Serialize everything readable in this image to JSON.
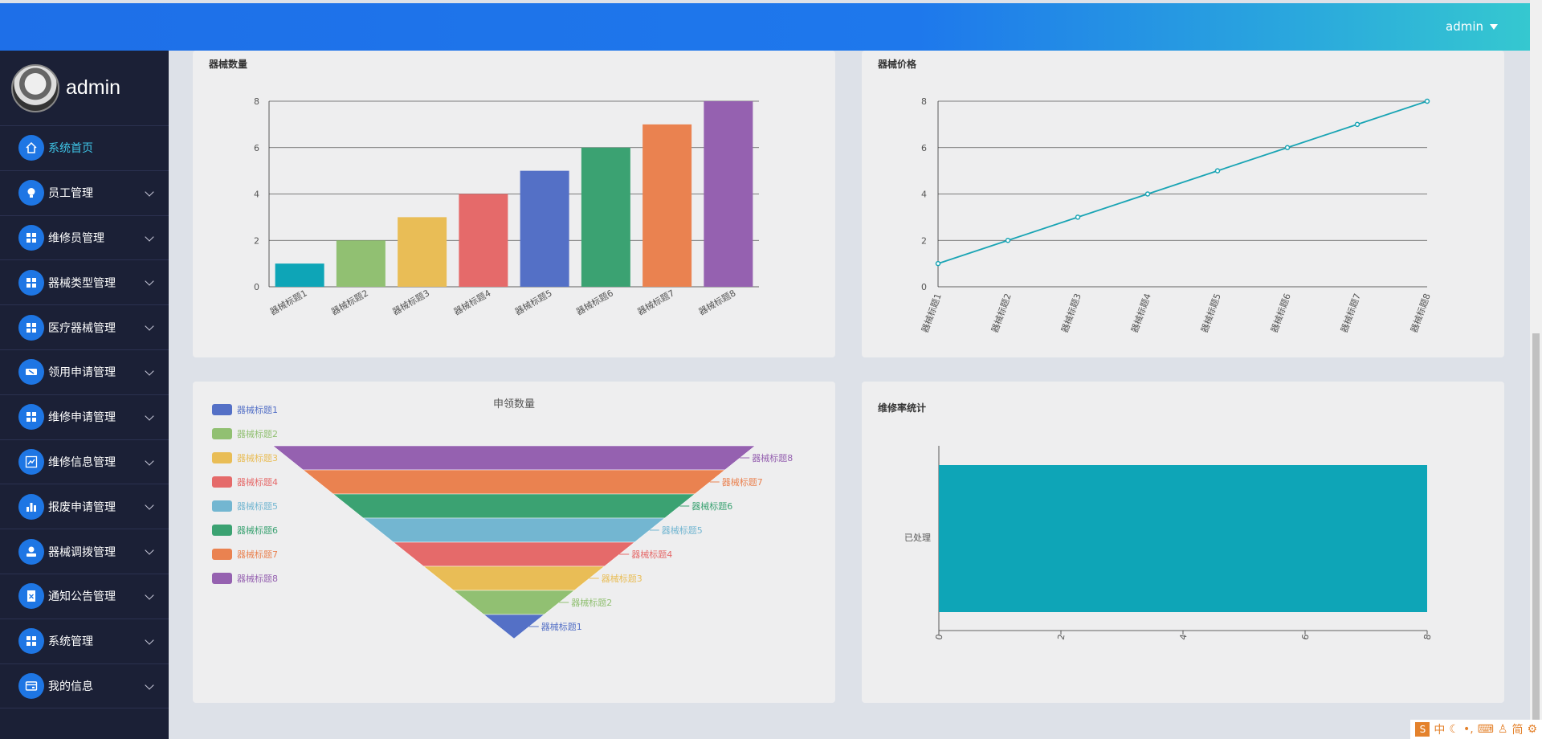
{
  "header": {
    "user_label": "admin"
  },
  "sidebar": {
    "brand_name": "admin",
    "items": [
      {
        "label": "系统首页",
        "icon": "home-icon",
        "active": true
      },
      {
        "label": "员工管理",
        "icon": "bulb-icon"
      },
      {
        "label": "维修员管理",
        "icon": "grid-icon"
      },
      {
        "label": "器械类型管理",
        "icon": "grid-icon"
      },
      {
        "label": "医疗器械管理",
        "icon": "grid-icon"
      },
      {
        "label": "领用申请管理",
        "icon": "ticket-icon"
      },
      {
        "label": "维修申请管理",
        "icon": "grid-icon"
      },
      {
        "label": "维修信息管理",
        "icon": "trend-icon"
      },
      {
        "label": "报废申请管理",
        "icon": "bar-chart-icon"
      },
      {
        "label": "器械调拨管理",
        "icon": "user-icon"
      },
      {
        "label": "通知公告管理",
        "icon": "notice-icon"
      },
      {
        "label": "系统管理",
        "icon": "grid-icon"
      },
      {
        "label": "我的信息",
        "icon": "card-icon"
      }
    ]
  },
  "panels": {
    "quantity_title": "器械数量",
    "price_title": "器械价格",
    "apply_title": "申领数量",
    "repair_title": "维修率统计"
  },
  "tray": {
    "chars": [
      "中",
      "简"
    ]
  },
  "chart_data": [
    {
      "type": "bar",
      "title": "器械数量",
      "categories": [
        "器械标题1",
        "器械标题2",
        "器械标题3",
        "器械标题4",
        "器械标题5",
        "器械标题6",
        "器械标题7",
        "器械标题8"
      ],
      "values": [
        1,
        2,
        3,
        4,
        5,
        6,
        7,
        8
      ],
      "ylim": [
        0,
        8
      ],
      "yticks": [
        "0",
        "2",
        "4",
        "6",
        "8"
      ],
      "colors": [
        "#0ea5b7",
        "#91c072",
        "#e9bd56",
        "#e56a6a",
        "#5470c6",
        "#3ba272",
        "#ea8250",
        "#9561b0"
      ],
      "grid": true
    },
    {
      "type": "line",
      "title": "器械价格",
      "categories": [
        "器械标题1",
        "器械标题2",
        "器械标题3",
        "器械标题4",
        "器械标题5",
        "器械标题6",
        "器械标题7",
        "器械标题8"
      ],
      "values": [
        1,
        2,
        3,
        4,
        5,
        6,
        7,
        8
      ],
      "ylim": [
        0,
        8
      ],
      "yticks": [
        "0",
        "2",
        "4",
        "6",
        "8"
      ],
      "color": "#19a4b4",
      "grid": true
    },
    {
      "type": "funnel",
      "title": "申领数量",
      "categories": [
        "器械标题1",
        "器械标题2",
        "器械标题3",
        "器械标题4",
        "器械标题5",
        "器械标题6",
        "器械标题7",
        "器械标题8"
      ],
      "values": [
        1,
        2,
        3,
        4,
        5,
        6,
        7,
        8
      ],
      "colors": [
        "#5470c6",
        "#91c072",
        "#e9bd56",
        "#e56a6a",
        "#73b6d1",
        "#3ba272",
        "#ea8250",
        "#9561b0"
      ],
      "legend": "left"
    },
    {
      "type": "bar",
      "orientation": "horizontal",
      "title": "维修率统计",
      "categories": [
        "已处理"
      ],
      "values": [
        8
      ],
      "xlim": [
        0,
        8
      ],
      "xticks": [
        "0",
        "2",
        "4",
        "6",
        "8"
      ],
      "color": "#0ea5b7"
    }
  ]
}
